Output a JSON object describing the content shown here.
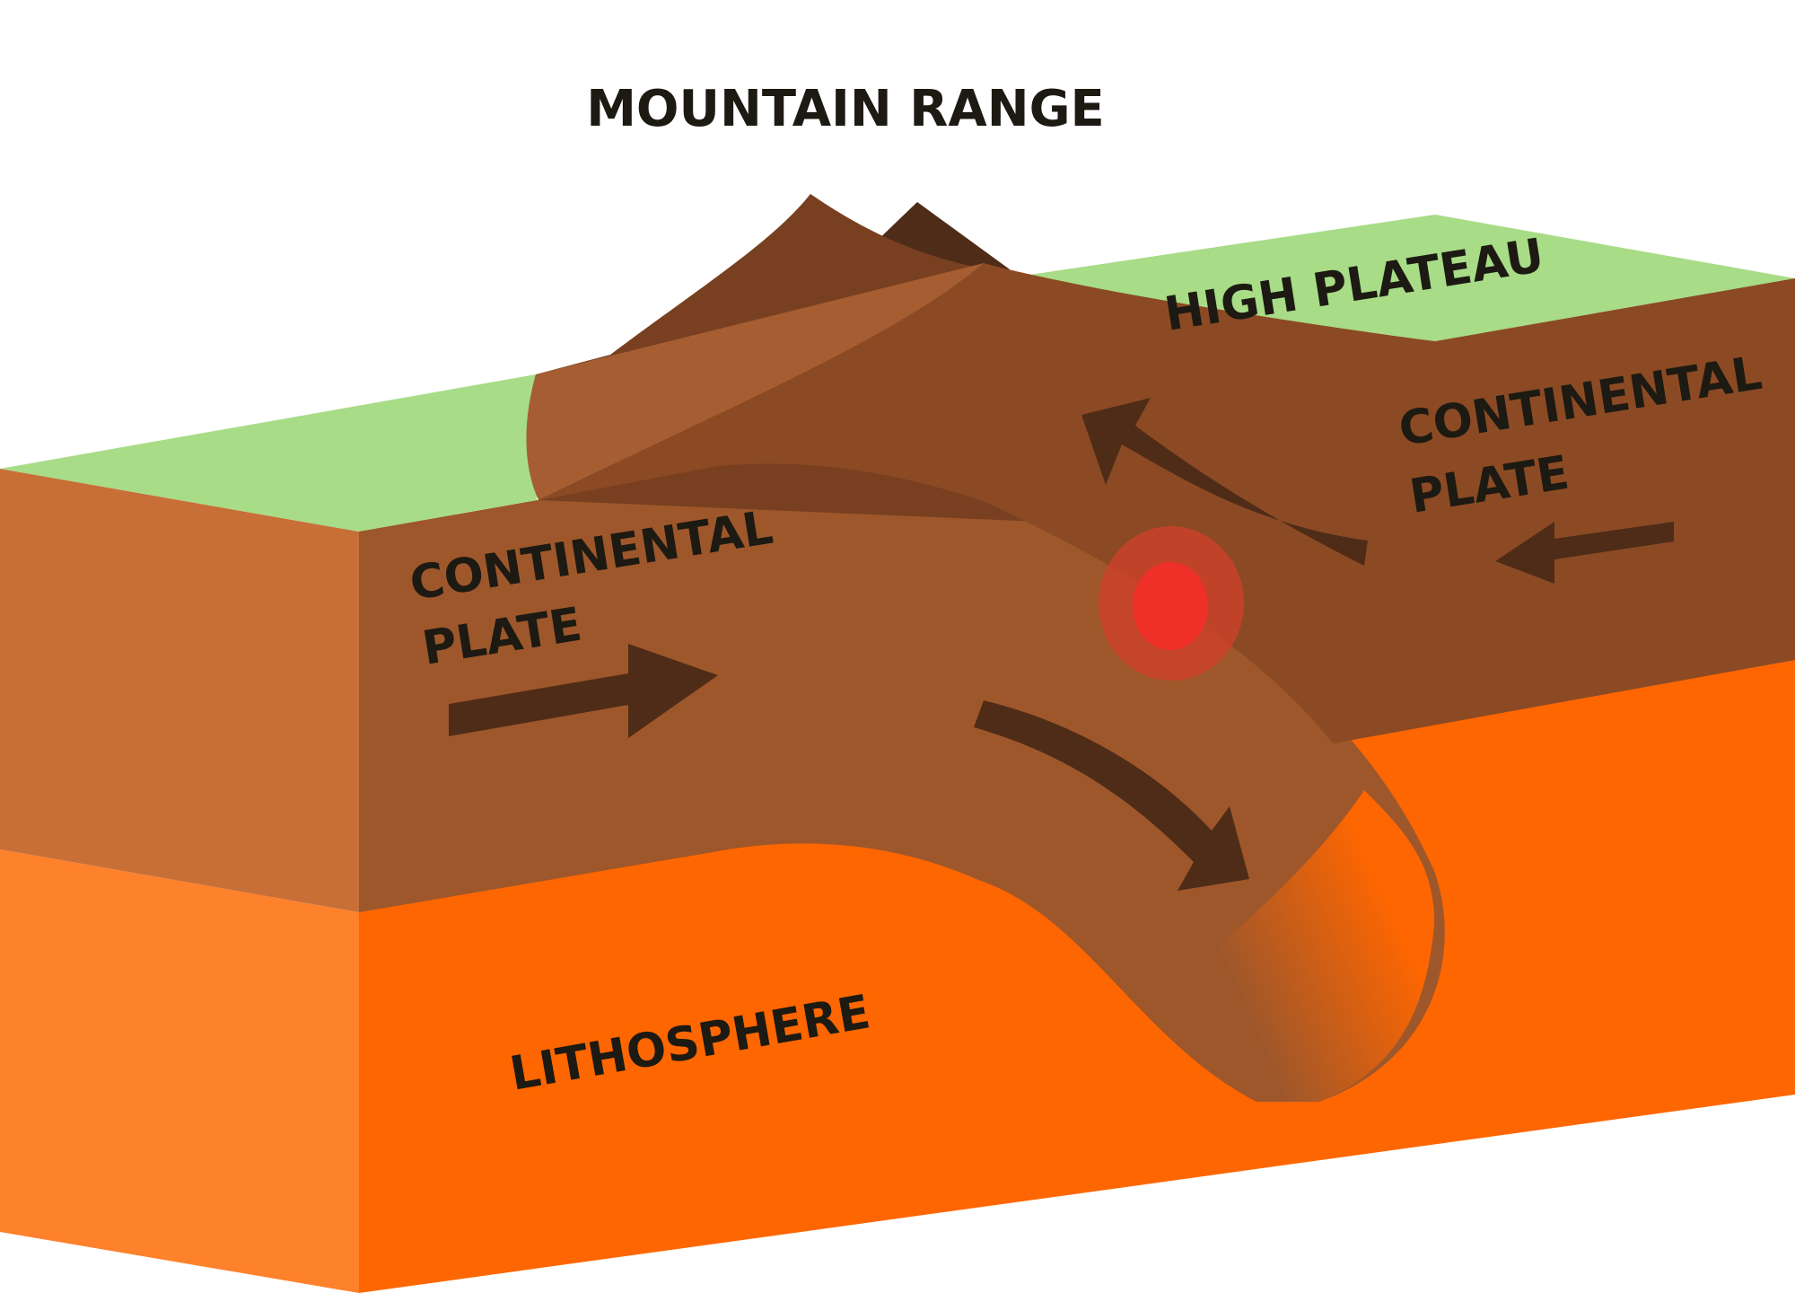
{
  "labels": {
    "title": "MOUNTAIN RANGE",
    "high_plateau": "HIGH PLATEAU",
    "left_plate_line1": "CONTINENTAL",
    "left_plate_line2": "PLATE",
    "right_plate_line1": "CONTINENTAL",
    "right_plate_line2": "PLATE",
    "lithosphere": "LITHOSPHERE"
  },
  "colors": {
    "plateau_green": "#a8dc87",
    "crust_front": "#c86f38",
    "crust_side": "#8b4a24",
    "slab": "#9e572b",
    "slab_top": "#a55d31",
    "mountain": "#784020",
    "mountain_dark": "#4f2c17",
    "lithosphere_front": "#fe812b",
    "lithosphere_side": "#fe6601",
    "arrow": "#4f2c17",
    "hotspot_core": "#ee3028",
    "hotspot_halo": "#d0402a"
  },
  "icons": {
    "arrows": [
      "right-arrow-icon",
      "left-arrow-icon",
      "curved-up-arrow-icon",
      "curved-down-arrow-icon"
    ],
    "hotspot": "magma-hotspot-icon"
  }
}
